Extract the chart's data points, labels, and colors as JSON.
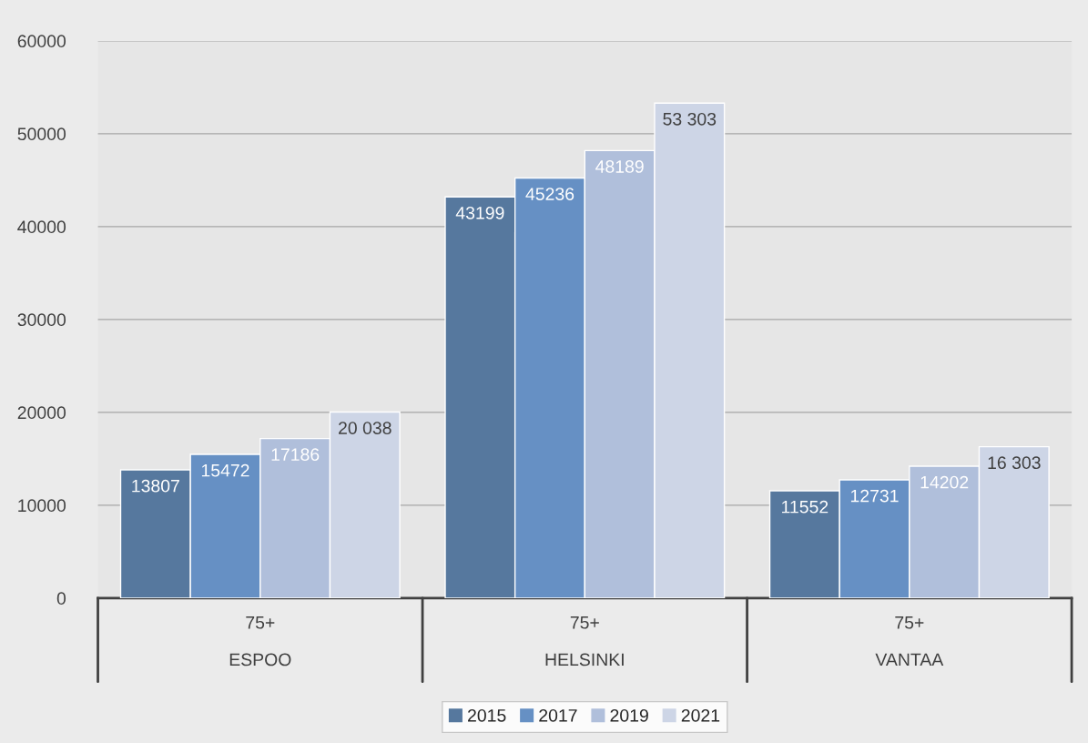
{
  "chart_data": {
    "type": "bar",
    "categories": [
      "75+\nESPOO",
      "75+\nHELSINKI",
      "75+\nVANTAA"
    ],
    "series": [
      {
        "name": "2015",
        "color": "#56789e",
        "values": [
          13807,
          43199,
          11552
        ],
        "value_labels": [
          "13807",
          "43199",
          "11552"
        ]
      },
      {
        "name": "2017",
        "color": "#6690c4",
        "values": [
          15472,
          45236,
          12731
        ],
        "value_labels": [
          "15472",
          "45236",
          "12731"
        ]
      },
      {
        "name": "2019",
        "color": "#b0bfdb",
        "values": [
          17186,
          48189,
          14202
        ],
        "value_labels": [
          "17186",
          "48189",
          "14202"
        ]
      },
      {
        "name": "2021",
        "color": "#cdd5e6",
        "values": [
          20038,
          53303,
          16303
        ],
        "value_labels": [
          "20 038",
          "53 303",
          "16 303"
        ]
      }
    ],
    "ylim": [
      0,
      60000
    ],
    "yticks": [
      0,
      10000,
      20000,
      30000,
      40000,
      50000,
      60000
    ],
    "grid": "y",
    "legend": "bottom"
  }
}
